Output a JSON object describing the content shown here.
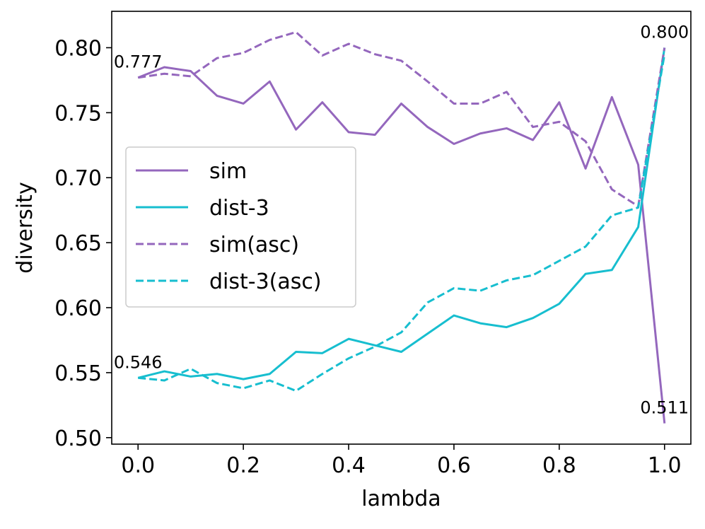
{
  "chart_data": {
    "type": "line",
    "title": "",
    "xlabel": "lambda",
    "ylabel": "diversity",
    "xlim": [
      -0.05,
      1.05
    ],
    "ylim": [
      0.495,
      0.828
    ],
    "xticks": [
      0.0,
      0.2,
      0.4,
      0.6,
      0.8,
      1.0
    ],
    "xtick_labels": [
      "0.0",
      "0.2",
      "0.4",
      "0.6",
      "0.8",
      "1.0"
    ],
    "yticks": [
      0.5,
      0.55,
      0.6,
      0.65,
      0.7,
      0.75,
      0.8
    ],
    "ytick_labels": [
      "0.50",
      "0.55",
      "0.60",
      "0.65",
      "0.70",
      "0.75",
      "0.80"
    ],
    "grid": false,
    "legend_position": "center-left",
    "x": [
      0.0,
      0.05,
      0.1,
      0.15,
      0.2,
      0.25,
      0.3,
      0.35,
      0.4,
      0.45,
      0.5,
      0.55,
      0.6,
      0.65,
      0.7,
      0.75,
      0.8,
      0.85,
      0.9,
      0.95,
      1.0
    ],
    "series": [
      {
        "name": "sim",
        "color": "#9467bd",
        "style": "solid",
        "values": [
          0.777,
          0.785,
          0.782,
          0.763,
          0.757,
          0.774,
          0.737,
          0.758,
          0.735,
          0.733,
          0.757,
          0.739,
          0.726,
          0.734,
          0.738,
          0.729,
          0.758,
          0.707,
          0.762,
          0.71,
          0.511
        ]
      },
      {
        "name": "dist-3",
        "color": "#17becf",
        "style": "solid",
        "values": [
          0.546,
          0.551,
          0.547,
          0.549,
          0.545,
          0.549,
          0.566,
          0.565,
          0.576,
          0.571,
          0.566,
          0.58,
          0.594,
          0.588,
          0.585,
          0.592,
          0.603,
          0.626,
          0.629,
          0.662,
          0.8
        ]
      },
      {
        "name": "sim(asc)",
        "color": "#9467bd",
        "style": "dashed",
        "values": [
          0.777,
          0.78,
          0.778,
          0.792,
          0.796,
          0.806,
          0.812,
          0.794,
          0.803,
          0.795,
          0.79,
          0.774,
          0.757,
          0.757,
          0.766,
          0.739,
          0.743,
          0.728,
          0.691,
          0.678,
          0.8
        ]
      },
      {
        "name": "dist-3(asc)",
        "color": "#17becf",
        "style": "dashed",
        "values": [
          0.546,
          0.544,
          0.553,
          0.542,
          0.538,
          0.544,
          0.536,
          0.549,
          0.561,
          0.57,
          0.581,
          0.604,
          0.615,
          0.613,
          0.621,
          0.625,
          0.636,
          0.647,
          0.671,
          0.677,
          0.795
        ]
      }
    ],
    "annotations": [
      {
        "text": "0.777",
        "x": 0.0,
        "y": 0.777
      },
      {
        "text": "0.546",
        "x": 0.0,
        "y": 0.546
      },
      {
        "text": "0.800",
        "x": 1.0,
        "y": 0.8
      },
      {
        "text": "0.511",
        "x": 1.0,
        "y": 0.511
      }
    ]
  }
}
